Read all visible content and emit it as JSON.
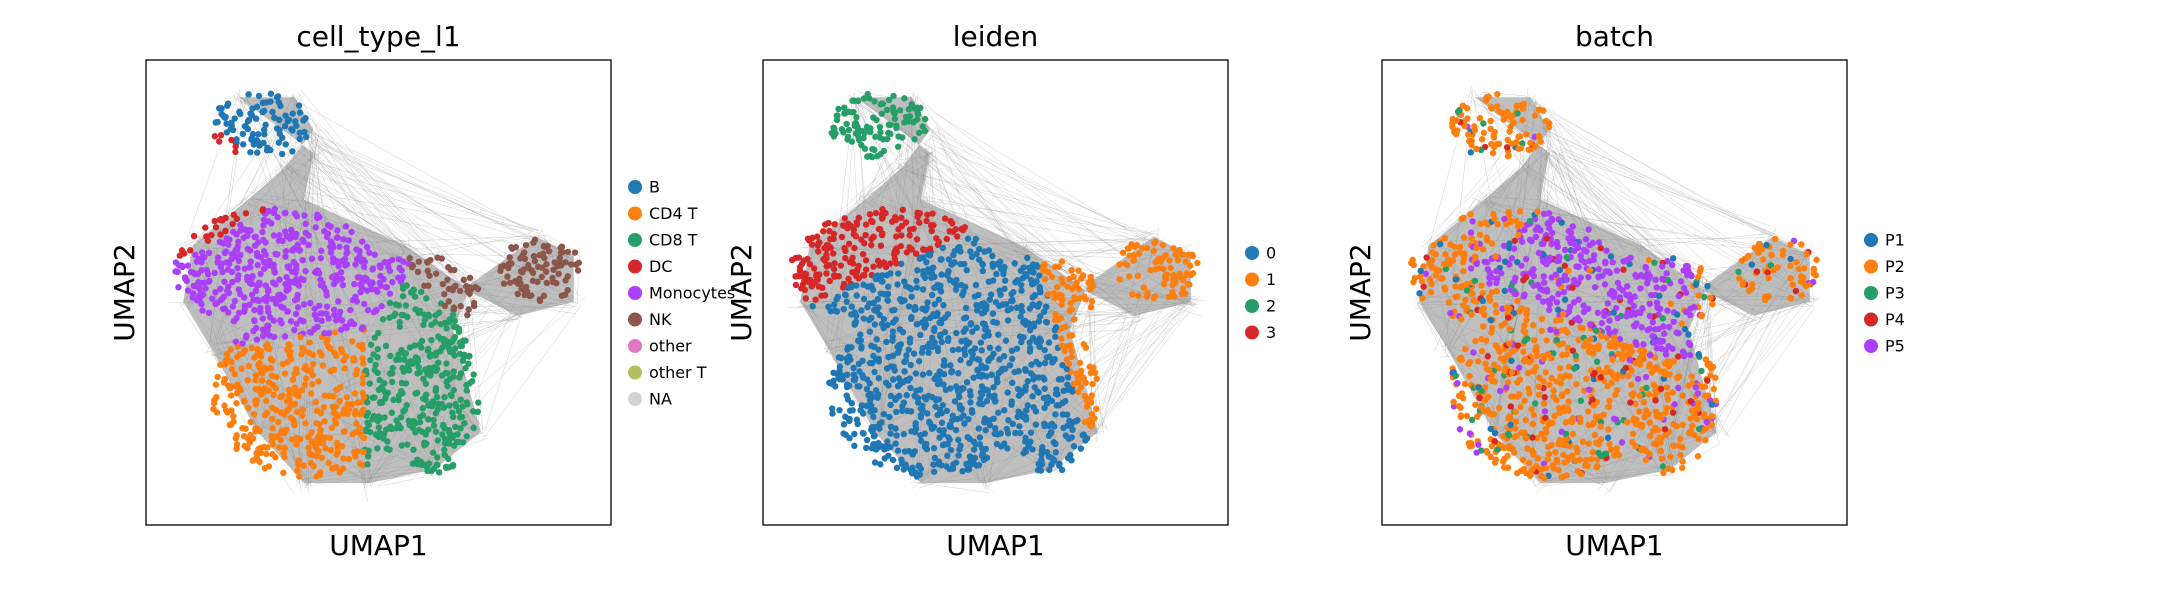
{
  "chart_data": [
    {
      "type": "scatter",
      "title": "cell_type_l1",
      "xlabel": "UMAP1",
      "ylabel": "UMAP2",
      "grid": false,
      "ticks": false,
      "legend_position": "right",
      "categories": [
        "B",
        "CD4 T",
        "CD8 T",
        "DC",
        "Monocytes",
        "NK",
        "other",
        "other T",
        "NA"
      ],
      "colors": [
        "#1f77b4",
        "#ff7f0e",
        "#279e68",
        "#d62728",
        "#aa40fc",
        "#8c564b",
        "#e377c2",
        "#b5bd61",
        "#d3d3d3"
      ],
      "cluster_centers": [
        {
          "category": "B",
          "x": 0.25,
          "y": 0.86
        },
        {
          "category": "DC",
          "x": 0.16,
          "y": 0.76
        },
        {
          "category": "Monocytes",
          "x": 0.28,
          "y": 0.55
        },
        {
          "category": "NK",
          "x": 0.85,
          "y": 0.55
        },
        {
          "category": "CD4 T",
          "x": 0.32,
          "y": 0.25
        },
        {
          "category": "CD8 T",
          "x": 0.62,
          "y": 0.25
        }
      ]
    },
    {
      "type": "scatter",
      "title": "leiden",
      "xlabel": "UMAP1",
      "ylabel": "UMAP2",
      "grid": false,
      "ticks": false,
      "legend_position": "right",
      "categories": [
        "0",
        "1",
        "2",
        "3"
      ],
      "colors": [
        "#1f77b4",
        "#ff7f0e",
        "#279e68",
        "#d62728"
      ],
      "cluster_centers": [
        {
          "category": "2",
          "x": 0.22,
          "y": 0.86
        },
        {
          "category": "1",
          "x": 0.85,
          "y": 0.55
        },
        {
          "category": "0",
          "x": 0.38,
          "y": 0.42
        },
        {
          "category": "3",
          "x": 0.25,
          "y": 0.72
        }
      ]
    },
    {
      "type": "scatter",
      "title": "batch",
      "xlabel": "UMAP1",
      "ylabel": "UMAP2",
      "grid": false,
      "ticks": false,
      "legend_position": "right",
      "categories": [
        "P1",
        "P2",
        "P3",
        "P4",
        "P5"
      ],
      "colors": [
        "#1f77b4",
        "#ff7f0e",
        "#279e68",
        "#d62728",
        "#aa40fc"
      ],
      "cluster_centers": [
        {
          "category": "P2",
          "x": 0.25,
          "y": 0.86
        },
        {
          "category": "P5",
          "x": 0.5,
          "y": 0.55
        },
        {
          "category": "P2",
          "x": 0.4,
          "y": 0.3
        },
        {
          "category": "P2",
          "x": 0.85,
          "y": 0.55
        }
      ]
    }
  ]
}
